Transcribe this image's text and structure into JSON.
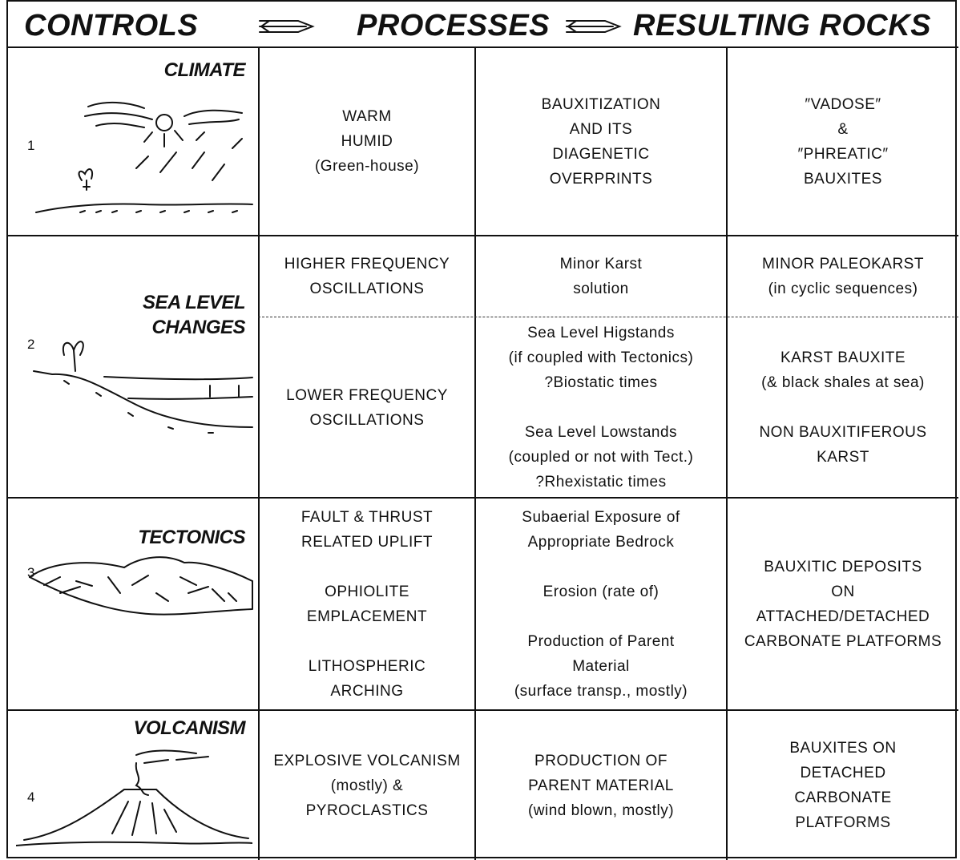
{
  "header": {
    "controls": "CONTROLS",
    "processes": "PROCESSES",
    "results": "RESULTING ROCKS"
  },
  "rows": [
    {
      "number": "1",
      "control": [
        "CLIMATE"
      ],
      "parts": [
        {
          "factors": [
            [
              "WARM",
              "HUMID",
              "(Green-house)"
            ]
          ],
          "processes": [
            [
              "BAUXITIZATION",
              "AND ITS",
              "DIAGENETIC",
              "OVERPRINTS"
            ]
          ],
          "results": [
            [
              "″VADOSE″",
              "&",
              "″PHREATIC″",
              "BAUXITES"
            ]
          ]
        }
      ]
    },
    {
      "number": "2",
      "control": [
        "SEA LEVEL",
        "CHANGES"
      ],
      "parts": [
        {
          "factors": [
            [
              "HIGHER FREQUENCY",
              "OSCILLATIONS"
            ]
          ],
          "processes": [
            [
              "Minor Karst",
              "solution"
            ]
          ],
          "results": [
            [
              "MINOR PALEOKARST",
              "(in cyclic sequences)"
            ]
          ]
        },
        {
          "factors": [
            [
              "LOWER FREQUENCY",
              "OSCILLATIONS"
            ]
          ],
          "processes": [
            [
              "Sea Level Higstands",
              "(if coupled with Tectonics)",
              "?Biostatic times"
            ],
            [
              "Sea Level Lowstands",
              "(coupled or not with Tect.)",
              "?Rhexistatic times"
            ]
          ],
          "results": [
            [
              "KARST BAUXITE",
              "(& black shales at sea)"
            ],
            [
              "NON BAUXITIFEROUS",
              "KARST"
            ]
          ]
        }
      ]
    },
    {
      "number": "3",
      "control": [
        "TECTONICS"
      ],
      "parts": [
        {
          "factors": [
            [
              "FAULT & THRUST",
              "RELATED UPLIFT"
            ],
            [
              "OPHIOLITE",
              "EMPLACEMENT"
            ],
            [
              "LITHOSPHERIC",
              "ARCHING"
            ]
          ],
          "processes": [
            [
              "Subaerial Exposure of",
              "Appropriate Bedrock"
            ],
            [
              "Erosion (rate of)"
            ],
            [
              "Production of Parent",
              "Material",
              "(surface transp., mostly)"
            ]
          ],
          "results": [
            [
              "BAUXITIC DEPOSITS",
              "ON",
              "ATTACHED/DETACHED",
              "CARBONATE PLATFORMS"
            ]
          ]
        }
      ]
    },
    {
      "number": "4",
      "control": [
        "VOLCANISM"
      ],
      "parts": [
        {
          "factors": [
            [
              "EXPLOSIVE VOLCANISM",
              "(mostly) &",
              "PYROCLASTICS"
            ]
          ],
          "processes": [
            [
              "PRODUCTION OF",
              "PARENT MATERIAL",
              "(wind blown, mostly)"
            ]
          ],
          "results": [
            [
              "BAUXITES ON",
              "DETACHED",
              "CARBONATE",
              "PLATFORMS"
            ]
          ]
        }
      ]
    }
  ]
}
